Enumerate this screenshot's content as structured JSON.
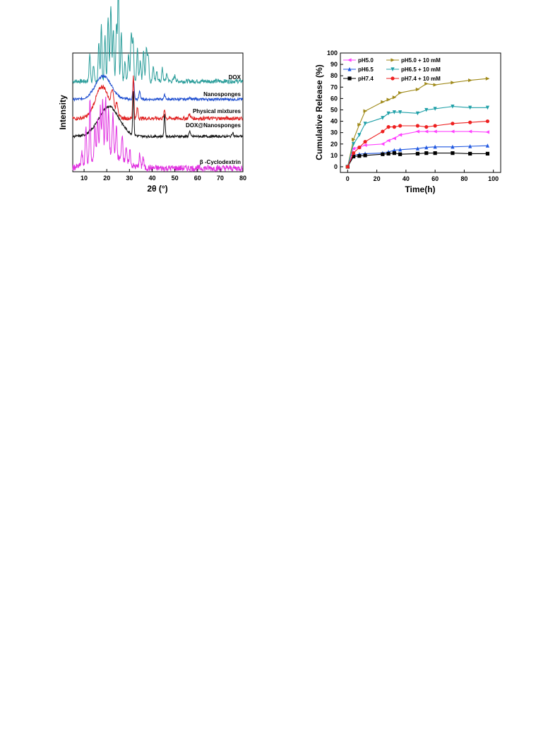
{
  "chart_data": [
    {
      "type": "line",
      "panel": "xrd",
      "xlabel": "2θ (°)",
      "ylabel": "Intensity",
      "xlim": [
        5,
        80
      ],
      "xticks": [
        10,
        20,
        30,
        40,
        50,
        60,
        70,
        80
      ],
      "grid": false,
      "series": [
        {
          "name": "DOX",
          "color": "#2a9d9a",
          "baseline": 0.84,
          "noise": 0.02,
          "peaks": [
            [
              12.5,
              0.25,
              0.3
            ],
            [
              14.2,
              0.15,
              0.3
            ],
            [
              16.5,
              0.35,
              0.3
            ],
            [
              17.6,
              0.55,
              0.25
            ],
            [
              19.2,
              0.42,
              0.3
            ],
            [
              20.6,
              0.62,
              0.3
            ],
            [
              21.8,
              0.72,
              0.3
            ],
            [
              22.9,
              0.5,
              0.3
            ],
            [
              24.3,
              0.55,
              0.3
            ],
            [
              25.1,
              0.95,
              0.25
            ],
            [
              26.4,
              0.45,
              0.3
            ],
            [
              28.0,
              0.2,
              0.3
            ],
            [
              29.6,
              0.25,
              0.3
            ],
            [
              30.8,
              0.45,
              0.3
            ],
            [
              31.6,
              0.38,
              0.3
            ],
            [
              33.5,
              0.3,
              0.3
            ],
            [
              34.8,
              0.2,
              0.3
            ],
            [
              36.2,
              0.3,
              0.3
            ],
            [
              37.5,
              0.32,
              0.3
            ],
            [
              38.3,
              0.25,
              0.3
            ],
            [
              40.5,
              0.15,
              0.3
            ],
            [
              42.0,
              0.1,
              0.3
            ],
            [
              44.5,
              0.12,
              0.3
            ],
            [
              46.5,
              0.06,
              0.4
            ],
            [
              50.0,
              0.05,
              0.4
            ]
          ]
        },
        {
          "name": "Nanosponges",
          "color": "#1f4fd0",
          "baseline": 0.67,
          "noise": 0.012,
          "peaks": [
            [
              18.5,
              0.22,
              3.5
            ],
            [
              31.8,
              0.18,
              0.3
            ],
            [
              34.5,
              0.08,
              0.3
            ],
            [
              45.5,
              0.04,
              0.4
            ],
            [
              56.5,
              0.02,
              0.4
            ]
          ]
        },
        {
          "name": "Physical mixtures",
          "color": "#e02020",
          "baseline": 0.49,
          "noise": 0.018,
          "peaks": [
            [
              18.0,
              0.3,
              3.0
            ],
            [
              22.5,
              0.18,
              0.6
            ],
            [
              24.5,
              0.12,
              0.5
            ],
            [
              31.7,
              0.42,
              0.25
            ],
            [
              33.5,
              0.1,
              0.3
            ],
            [
              45.5,
              0.08,
              0.3
            ],
            [
              56.5,
              0.04,
              0.4
            ]
          ]
        },
        {
          "name": "DOX@Nanosponges",
          "color": "#111111",
          "baseline": 0.32,
          "noise": 0.012,
          "peaks": [
            [
              21.0,
              0.28,
              4.5
            ],
            [
              31.7,
              0.42,
              0.25
            ],
            [
              45.5,
              0.22,
              0.25
            ],
            [
              56.5,
              0.05,
              0.3
            ],
            [
              75.5,
              0.04,
              0.3
            ]
          ]
        },
        {
          "name": "β -Cyclodextrin",
          "color": "#e030e0",
          "baseline": 0.02,
          "noise": 0.03,
          "peaks": [
            [
              9.0,
              0.12,
              0.3
            ],
            [
              10.8,
              0.35,
              0.3
            ],
            [
              12.6,
              0.6,
              0.25
            ],
            [
              14.8,
              0.3,
              0.3
            ],
            [
              16.0,
              0.35,
              0.3
            ],
            [
              17.2,
              0.45,
              0.3
            ],
            [
              18.2,
              0.5,
              0.3
            ],
            [
              19.5,
              0.52,
              0.3
            ],
            [
              20.8,
              0.4,
              0.3
            ],
            [
              22.7,
              0.38,
              0.3
            ],
            [
              24.2,
              0.28,
              0.3
            ],
            [
              26.8,
              0.25,
              0.3
            ],
            [
              28.5,
              0.15,
              0.3
            ],
            [
              30.2,
              0.14,
              0.3
            ],
            [
              34.5,
              0.12,
              0.3
            ],
            [
              36.0,
              0.1,
              0.3
            ],
            [
              20.0,
              0.14,
              6.0
            ]
          ]
        }
      ]
    },
    {
      "type": "line",
      "panel": "release",
      "xlabel": "Time(h)",
      "ylabel": "Cumulative Release (%)",
      "xlim": [
        -5,
        105
      ],
      "ylim": [
        -5,
        100
      ],
      "xticks": [
        0,
        20,
        40,
        60,
        80,
        100
      ],
      "yticks": [
        0,
        10,
        20,
        30,
        40,
        50,
        60,
        70,
        80,
        90,
        100
      ],
      "grid": false,
      "legend_position": "top-left",
      "x": [
        0,
        4,
        8,
        12,
        24,
        28,
        32,
        36,
        48,
        54,
        60,
        72,
        84,
        96
      ],
      "series": [
        {
          "name": "pH5.0",
          "color": "#ff44ff",
          "marker": "left-triangle",
          "values": [
            0,
            16,
            17,
            19,
            20,
            23,
            25,
            28,
            31,
            31,
            31,
            31,
            31,
            30.5
          ]
        },
        {
          "name": "pH6.5",
          "color": "#1f57e0",
          "marker": "triangle-up",
          "values": [
            0,
            10,
            11,
            11.5,
            12,
            13,
            14.5,
            15,
            16,
            17,
            17.5,
            17.5,
            18,
            18.5
          ]
        },
        {
          "name": "pH7.4",
          "color": "#000000",
          "marker": "square",
          "values": [
            0,
            9,
            9.5,
            10,
            11,
            11.5,
            12,
            11,
            11.5,
            12,
            12,
            12,
            11.5,
            11.5
          ]
        },
        {
          "name": "pH5.0 + 10 mM",
          "color": "#a08a1a",
          "marker": "right-triangle",
          "values": [
            0,
            24,
            37,
            49,
            57,
            59,
            61,
            65,
            68,
            73,
            72,
            74,
            76,
            77.5
          ]
        },
        {
          "name": "pH6.5 + 10 mM",
          "color": "#1fa0a8",
          "marker": "triangle-down",
          "values": [
            0,
            20,
            28,
            38,
            43,
            47,
            48,
            48,
            47,
            50,
            51,
            53,
            52,
            52
          ]
        },
        {
          "name": "pH7.4 + 10 mM",
          "color": "#ee2020",
          "marker": "circle",
          "values": [
            0,
            12,
            17,
            22,
            31,
            35,
            35,
            36,
            36,
            35,
            36,
            38,
            39,
            40
          ]
        }
      ]
    }
  ]
}
